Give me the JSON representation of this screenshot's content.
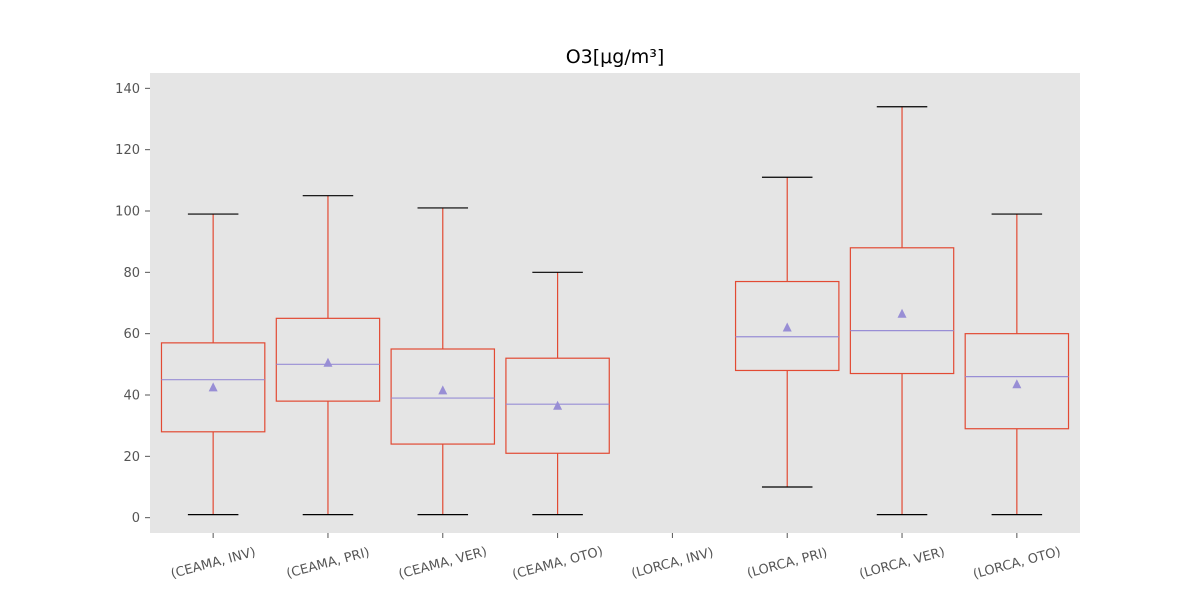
{
  "chart_data": {
    "type": "box",
    "title_base": "O3",
    "title_unit": "[μg/m³]",
    "categories": [
      "(CEAMA, INV)",
      "(CEAMA, PRI)",
      "(CEAMA, VER)",
      "(CEAMA, OTO)",
      "(LORCA, INV)",
      "(LORCA, PRI)",
      "(LORCA, VER)",
      "(LORCA, OTO)"
    ],
    "boxes": [
      {
        "category": "(CEAMA, INV)",
        "whisker_low": 1,
        "q1": 28,
        "median": 45,
        "q3": 57,
        "whisker_high": 99,
        "mean": 42.5
      },
      {
        "category": "(CEAMA, PRI)",
        "whisker_low": 1,
        "q1": 38,
        "median": 50,
        "q3": 65,
        "whisker_high": 105,
        "mean": 50.5
      },
      {
        "category": "(CEAMA, VER)",
        "whisker_low": 1,
        "q1": 24,
        "median": 39,
        "q3": 55,
        "whisker_high": 101,
        "mean": 41.5
      },
      {
        "category": "(CEAMA, OTO)",
        "whisker_low": 1,
        "q1": 21,
        "median": 37,
        "q3": 52,
        "whisker_high": 80,
        "mean": 36.5
      },
      null,
      {
        "category": "(LORCA, PRI)",
        "whisker_low": 10,
        "q1": 48,
        "median": 59,
        "q3": 77,
        "whisker_high": 111,
        "mean": 62
      },
      {
        "category": "(LORCA, VER)",
        "whisker_low": 1,
        "q1": 47,
        "median": 61,
        "q3": 88,
        "whisker_high": 134,
        "mean": 66.5
      },
      {
        "category": "(LORCA, OTO)",
        "whisker_low": 1,
        "q1": 29,
        "median": 46,
        "q3": 60,
        "whisker_high": 99,
        "mean": 43.5
      }
    ],
    "yticks": [
      0,
      20,
      40,
      60,
      80,
      100,
      120,
      140
    ],
    "ylim": [
      -5,
      145
    ],
    "grid": false,
    "colors": {
      "background": "#e5e5e5",
      "box": "#e24a33",
      "median": "#988ed5",
      "mean": "#988ed5",
      "caps": "#000000"
    }
  }
}
